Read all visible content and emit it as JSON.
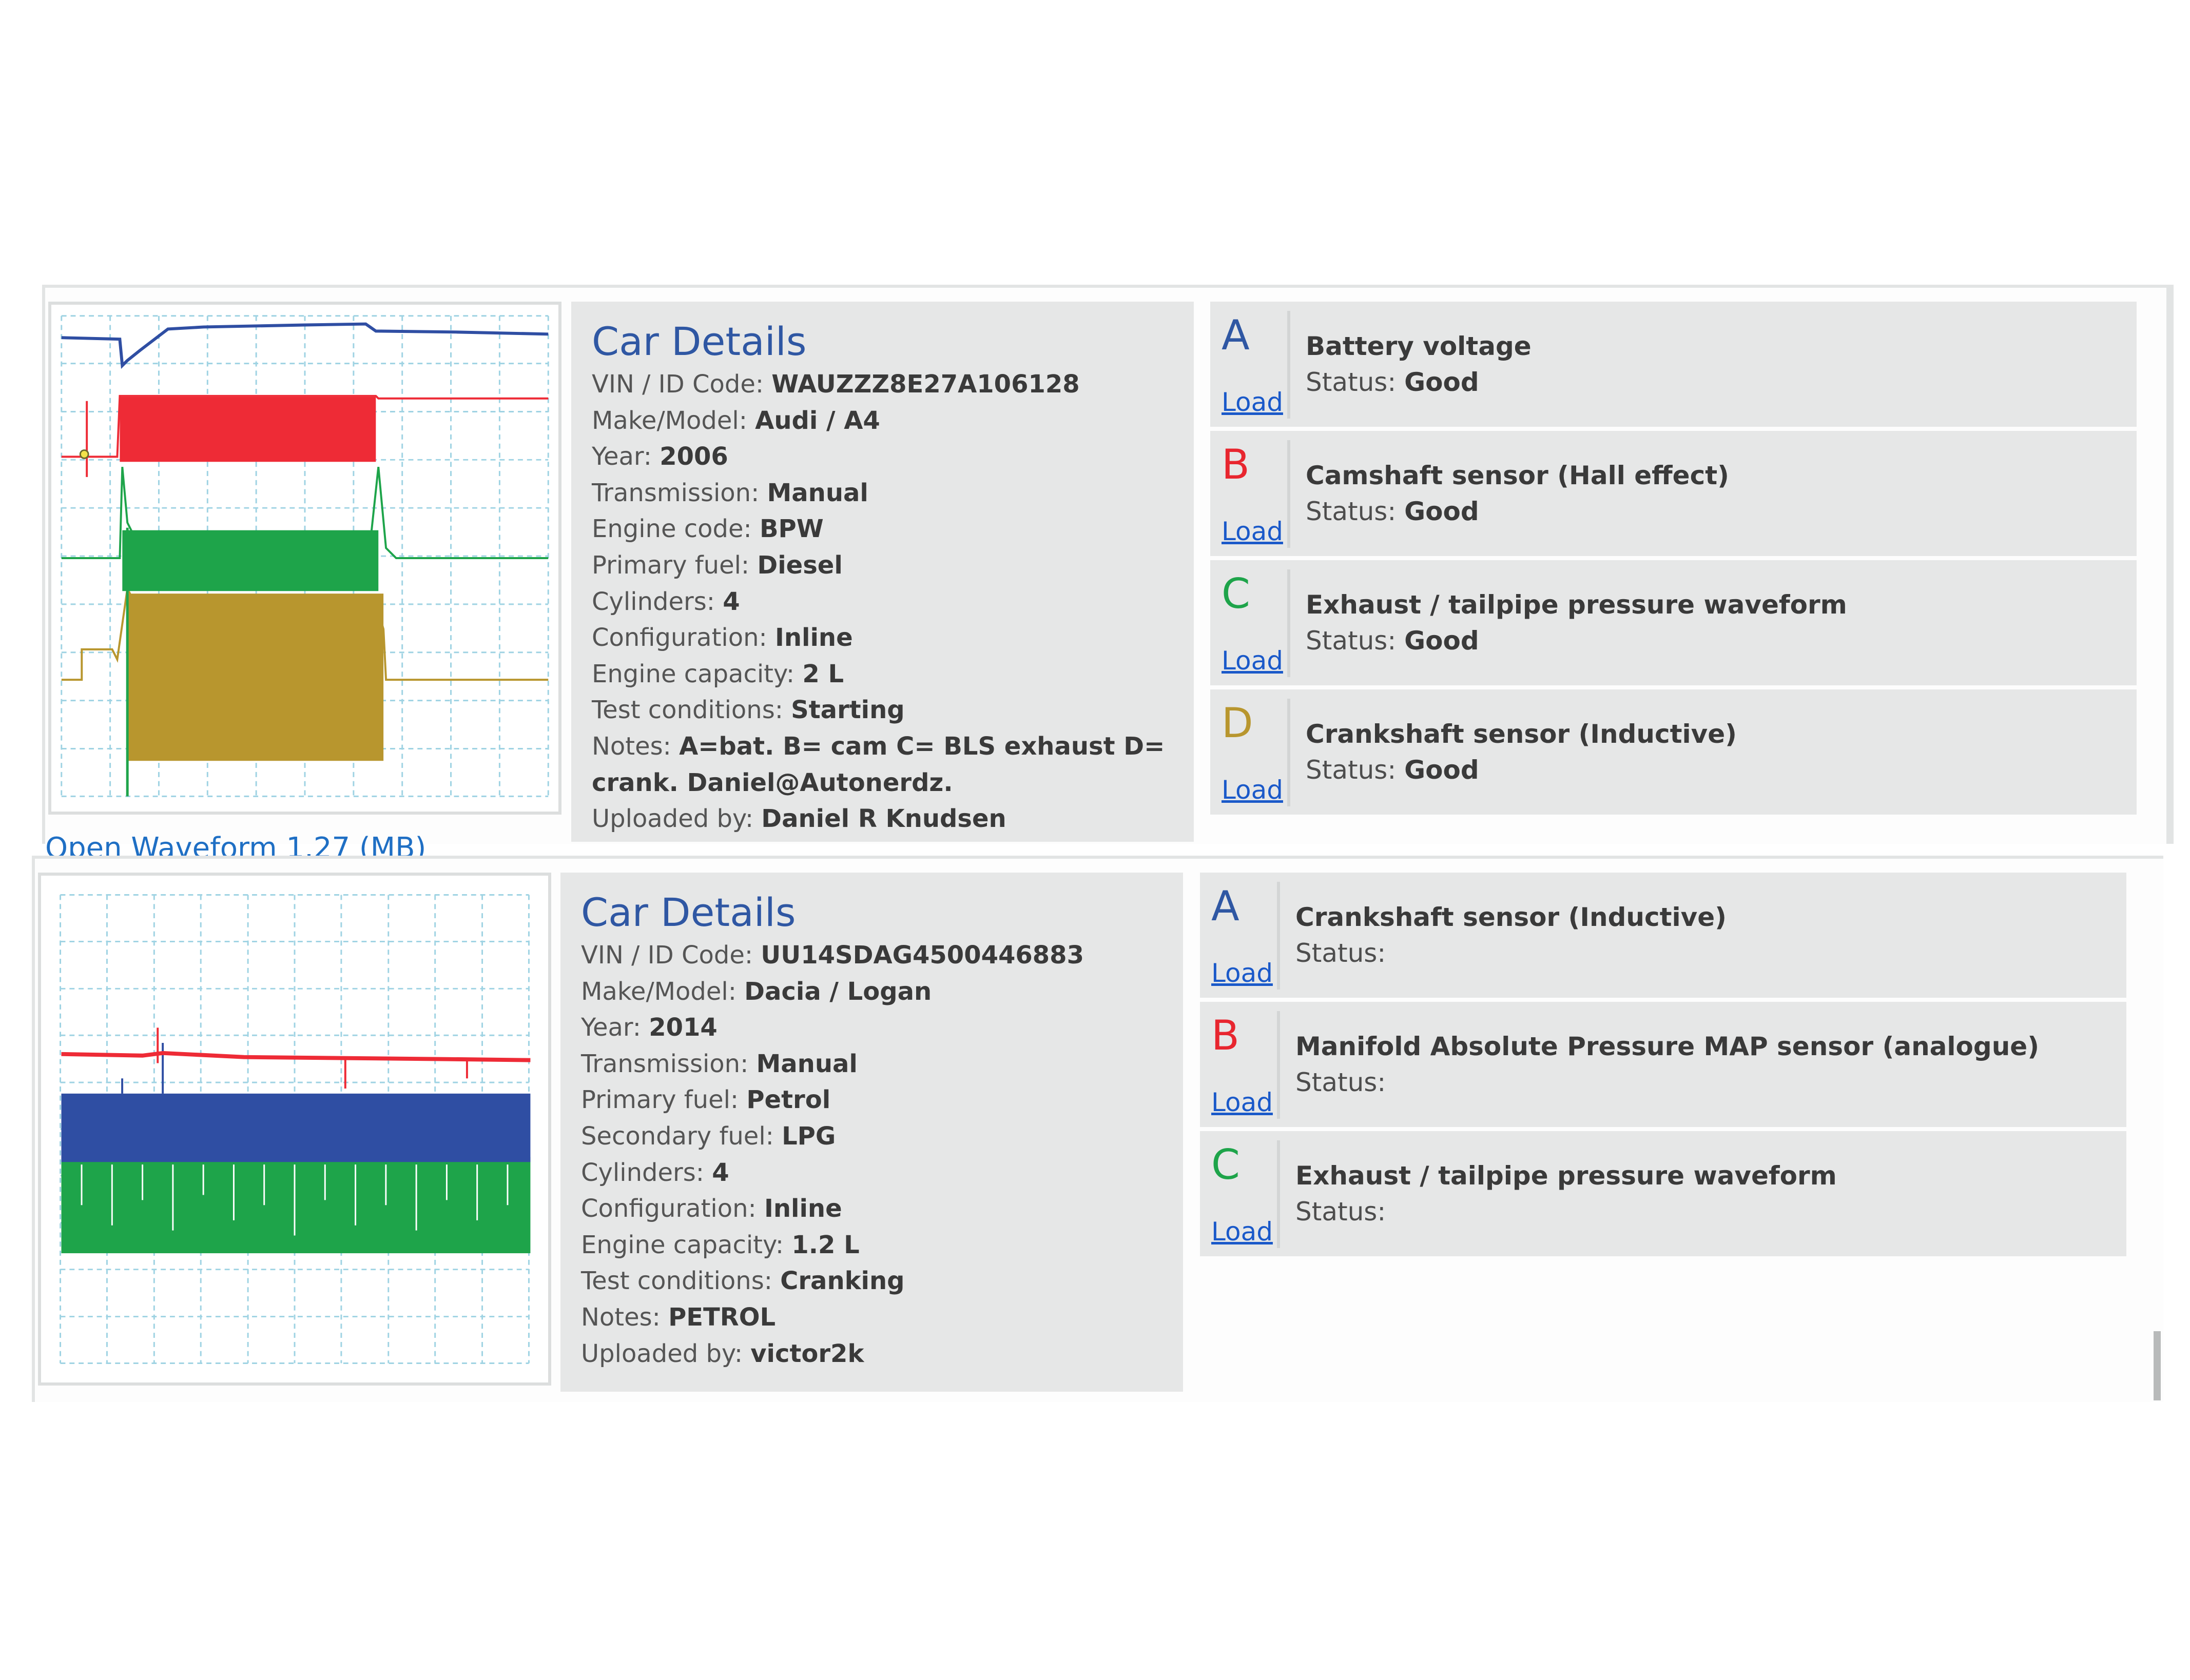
{
  "records": [
    {
      "caption": "Open Waveform 1.27 (MB)",
      "details_title": "Car Details",
      "details": [
        {
          "label": "VIN / ID Code: ",
          "value": "WAUZZZ8E27A106128"
        },
        {
          "label": "Make/Model: ",
          "value": "Audi / A4"
        },
        {
          "label": "Year: ",
          "value": "2006"
        },
        {
          "label": "Transmission: ",
          "value": "Manual"
        },
        {
          "label": "Engine code: ",
          "value": "BPW"
        },
        {
          "label": "Primary fuel: ",
          "value": "Diesel"
        },
        {
          "label": "Cylinders: ",
          "value": "4"
        },
        {
          "label": "Configuration: ",
          "value": "Inline"
        },
        {
          "label": "Engine capacity: ",
          "value": "2 L"
        },
        {
          "label": "Test conditions: ",
          "value": "Starting"
        },
        {
          "label": "Notes: ",
          "value": "A=bat. B= cam C= BLS exhaust D= crank. Daniel@Autonerdz."
        },
        {
          "label": "Uploaded by: ",
          "value": "Daniel R Knudsen"
        }
      ],
      "channels": [
        {
          "letter": "A",
          "color": "#2f57a3",
          "name": "Battery voltage",
          "status_label": "Status: ",
          "status": "Good",
          "load": "Load"
        },
        {
          "letter": "B",
          "color": "#e8262f",
          "name": "Camshaft sensor (Hall effect)",
          "status_label": "Status: ",
          "status": "Good",
          "load": "Load"
        },
        {
          "letter": "C",
          "color": "#1ea44a",
          "name": "Exhaust / tailpipe pressure waveform",
          "status_label": "Status: ",
          "status": "Good",
          "load": "Load"
        },
        {
          "letter": "D",
          "color": "#b8962e",
          "name": "Crankshaft sensor (Inductive)",
          "status_label": "Status: ",
          "status": "Good",
          "load": "Load"
        }
      ]
    },
    {
      "details_title": "Car Details",
      "details": [
        {
          "label": "VIN / ID Code: ",
          "value": "UU14SDAG4500446883"
        },
        {
          "label": "Make/Model: ",
          "value": "Dacia / Logan"
        },
        {
          "label": "Year: ",
          "value": "2014"
        },
        {
          "label": "Transmission: ",
          "value": "Manual"
        },
        {
          "label": "Primary fuel: ",
          "value": "Petrol"
        },
        {
          "label": "Secondary fuel: ",
          "value": "LPG"
        },
        {
          "label": "Cylinders: ",
          "value": "4"
        },
        {
          "label": "Configuration: ",
          "value": "Inline"
        },
        {
          "label": "Engine capacity: ",
          "value": "1.2 L"
        },
        {
          "label": "Test conditions: ",
          "value": "Cranking"
        },
        {
          "label": "Notes: ",
          "value": "PETROL"
        },
        {
          "label": "Uploaded by: ",
          "value": "victor2k"
        }
      ],
      "channels": [
        {
          "letter": "A",
          "color": "#2f57a3",
          "name": "Crankshaft sensor (Inductive)",
          "status_label": "Status:",
          "status": "",
          "load": "Load"
        },
        {
          "letter": "B",
          "color": "#e8262f",
          "name": "Manifold Absolute Pressure MAP sensor (analogue)",
          "status_label": "Status:",
          "status": "",
          "load": "Load"
        },
        {
          "letter": "C",
          "color": "#1ea44a",
          "name": "Exhaust / tailpipe pressure waveform",
          "status_label": "Status:",
          "status": "",
          "load": "Load"
        }
      ]
    }
  ],
  "trace_colors": {
    "a": "#2f4ea3",
    "b": "#ee2b36",
    "c": "#1ea44a",
    "d": "#b8962e"
  }
}
